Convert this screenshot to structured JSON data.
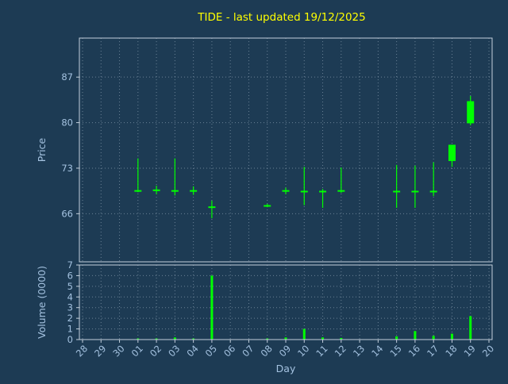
{
  "colors": {
    "background": "#1d3b54",
    "candle": "#00ff00",
    "title": "#ffff00",
    "axis_text": "#a4c2e0",
    "grid": "#93a6b8",
    "spine": "#c3cfdb"
  },
  "chart_data": {
    "type": "candlestick",
    "title": "TIDE - last updated 19/12/2025",
    "xlabel": "Day",
    "ylabel_price": "Price",
    "ylabel_volume": "Volume (0000)",
    "grid": true,
    "x_ticks": [
      "28",
      "29",
      "30",
      "01",
      "02",
      "03",
      "04",
      "05",
      "06",
      "07",
      "08",
      "09",
      "10",
      "11",
      "12",
      "13",
      "14",
      "15",
      "16",
      "17",
      "18",
      "19",
      "20"
    ],
    "price_ticks": [
      66,
      73,
      80,
      87
    ],
    "price_range": [
      58.6,
      93.0
    ],
    "volume_ticks": [
      0,
      1,
      2,
      3,
      4,
      5,
      6,
      7
    ],
    "volume_range": [
      0,
      7
    ],
    "candles": [
      {
        "day": "01",
        "open": 69.5,
        "high": 74.5,
        "low": 69.3,
        "close": 69.5,
        "volume": 0.1
      },
      {
        "day": "02",
        "open": 69.6,
        "high": 70.3,
        "low": 69.0,
        "close": 69.6,
        "volume": 0.1
      },
      {
        "day": "03",
        "open": 69.5,
        "high": 74.5,
        "low": 68.8,
        "close": 69.5,
        "volume": 0.2
      },
      {
        "day": "04",
        "open": 69.5,
        "high": 70.2,
        "low": 68.9,
        "close": 69.5,
        "volume": 0.1
      },
      {
        "day": "05",
        "open": 67.0,
        "high": 68.0,
        "low": 65.3,
        "close": 67.0,
        "volume": 6.0
      },
      {
        "day": "08",
        "open": 67.2,
        "high": 67.5,
        "low": 67.0,
        "close": 67.2,
        "volume": 0.1
      },
      {
        "day": "09",
        "open": 69.5,
        "high": 70.0,
        "low": 69.0,
        "close": 69.5,
        "volume": 0.2
      },
      {
        "day": "10",
        "open": 69.4,
        "high": 73.2,
        "low": 67.3,
        "close": 69.4,
        "volume": 1.0
      },
      {
        "day": "11",
        "open": 69.4,
        "high": 69.8,
        "low": 66.9,
        "close": 69.4,
        "volume": 0.2
      },
      {
        "day": "12",
        "open": 69.5,
        "high": 73.1,
        "low": 69.2,
        "close": 69.5,
        "volume": 0.15
      },
      {
        "day": "15",
        "open": 69.4,
        "high": 73.5,
        "low": 66.9,
        "close": 69.4,
        "volume": 0.3
      },
      {
        "day": "16",
        "open": 69.4,
        "high": 73.4,
        "low": 66.9,
        "close": 69.4,
        "volume": 0.8
      },
      {
        "day": "17",
        "open": 69.4,
        "high": 73.9,
        "low": 68.7,
        "close": 69.4,
        "volume": 0.35
      },
      {
        "day": "18",
        "open": 74.1,
        "high": 76.6,
        "low": 73.2,
        "close": 76.6,
        "volume": 0.55
      },
      {
        "day": "19",
        "open": 79.9,
        "high": 84.1,
        "low": 79.6,
        "close": 83.3,
        "volume": 2.2
      }
    ]
  }
}
